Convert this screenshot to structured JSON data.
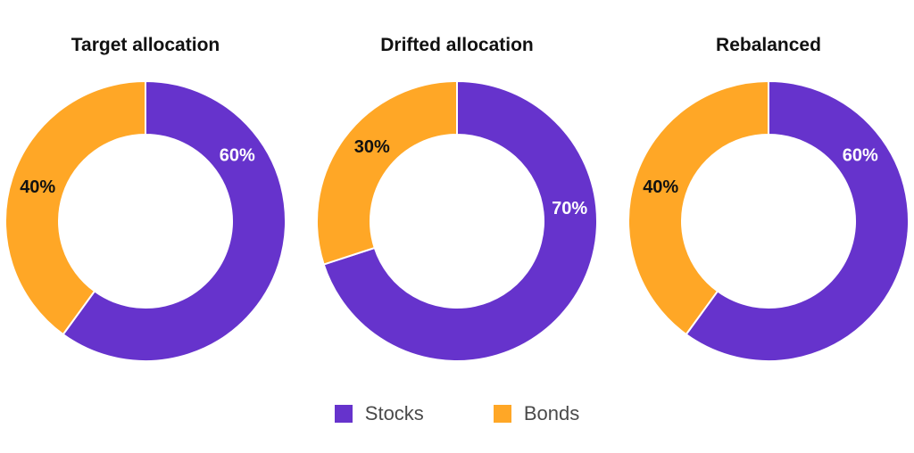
{
  "chart_data": [
    {
      "type": "pie",
      "title": "Target allocation",
      "categories": [
        "Stocks",
        "Bonds"
      ],
      "values": [
        60,
        40
      ],
      "labels": [
        "60%",
        "40%"
      ]
    },
    {
      "type": "pie",
      "title": "Drifted allocation",
      "categories": [
        "Stocks",
        "Bonds"
      ],
      "values": [
        70,
        30
      ],
      "labels": [
        "70%",
        "30%"
      ]
    },
    {
      "type": "pie",
      "title": "Rebalanced",
      "categories": [
        "Stocks",
        "Bonds"
      ],
      "values": [
        60,
        40
      ],
      "labels": [
        "60%",
        "40%"
      ]
    }
  ],
  "legend": {
    "items": [
      {
        "label": "Stocks",
        "color": "#6633cc"
      },
      {
        "label": "Bonds",
        "color": "#ffa726"
      }
    ],
    "placement": "bottom"
  },
  "colors": {
    "stocks": "#6633cc",
    "bonds": "#ffa726",
    "stocks_label_text": "#ffffff",
    "bonds_label_text": "#111111"
  }
}
